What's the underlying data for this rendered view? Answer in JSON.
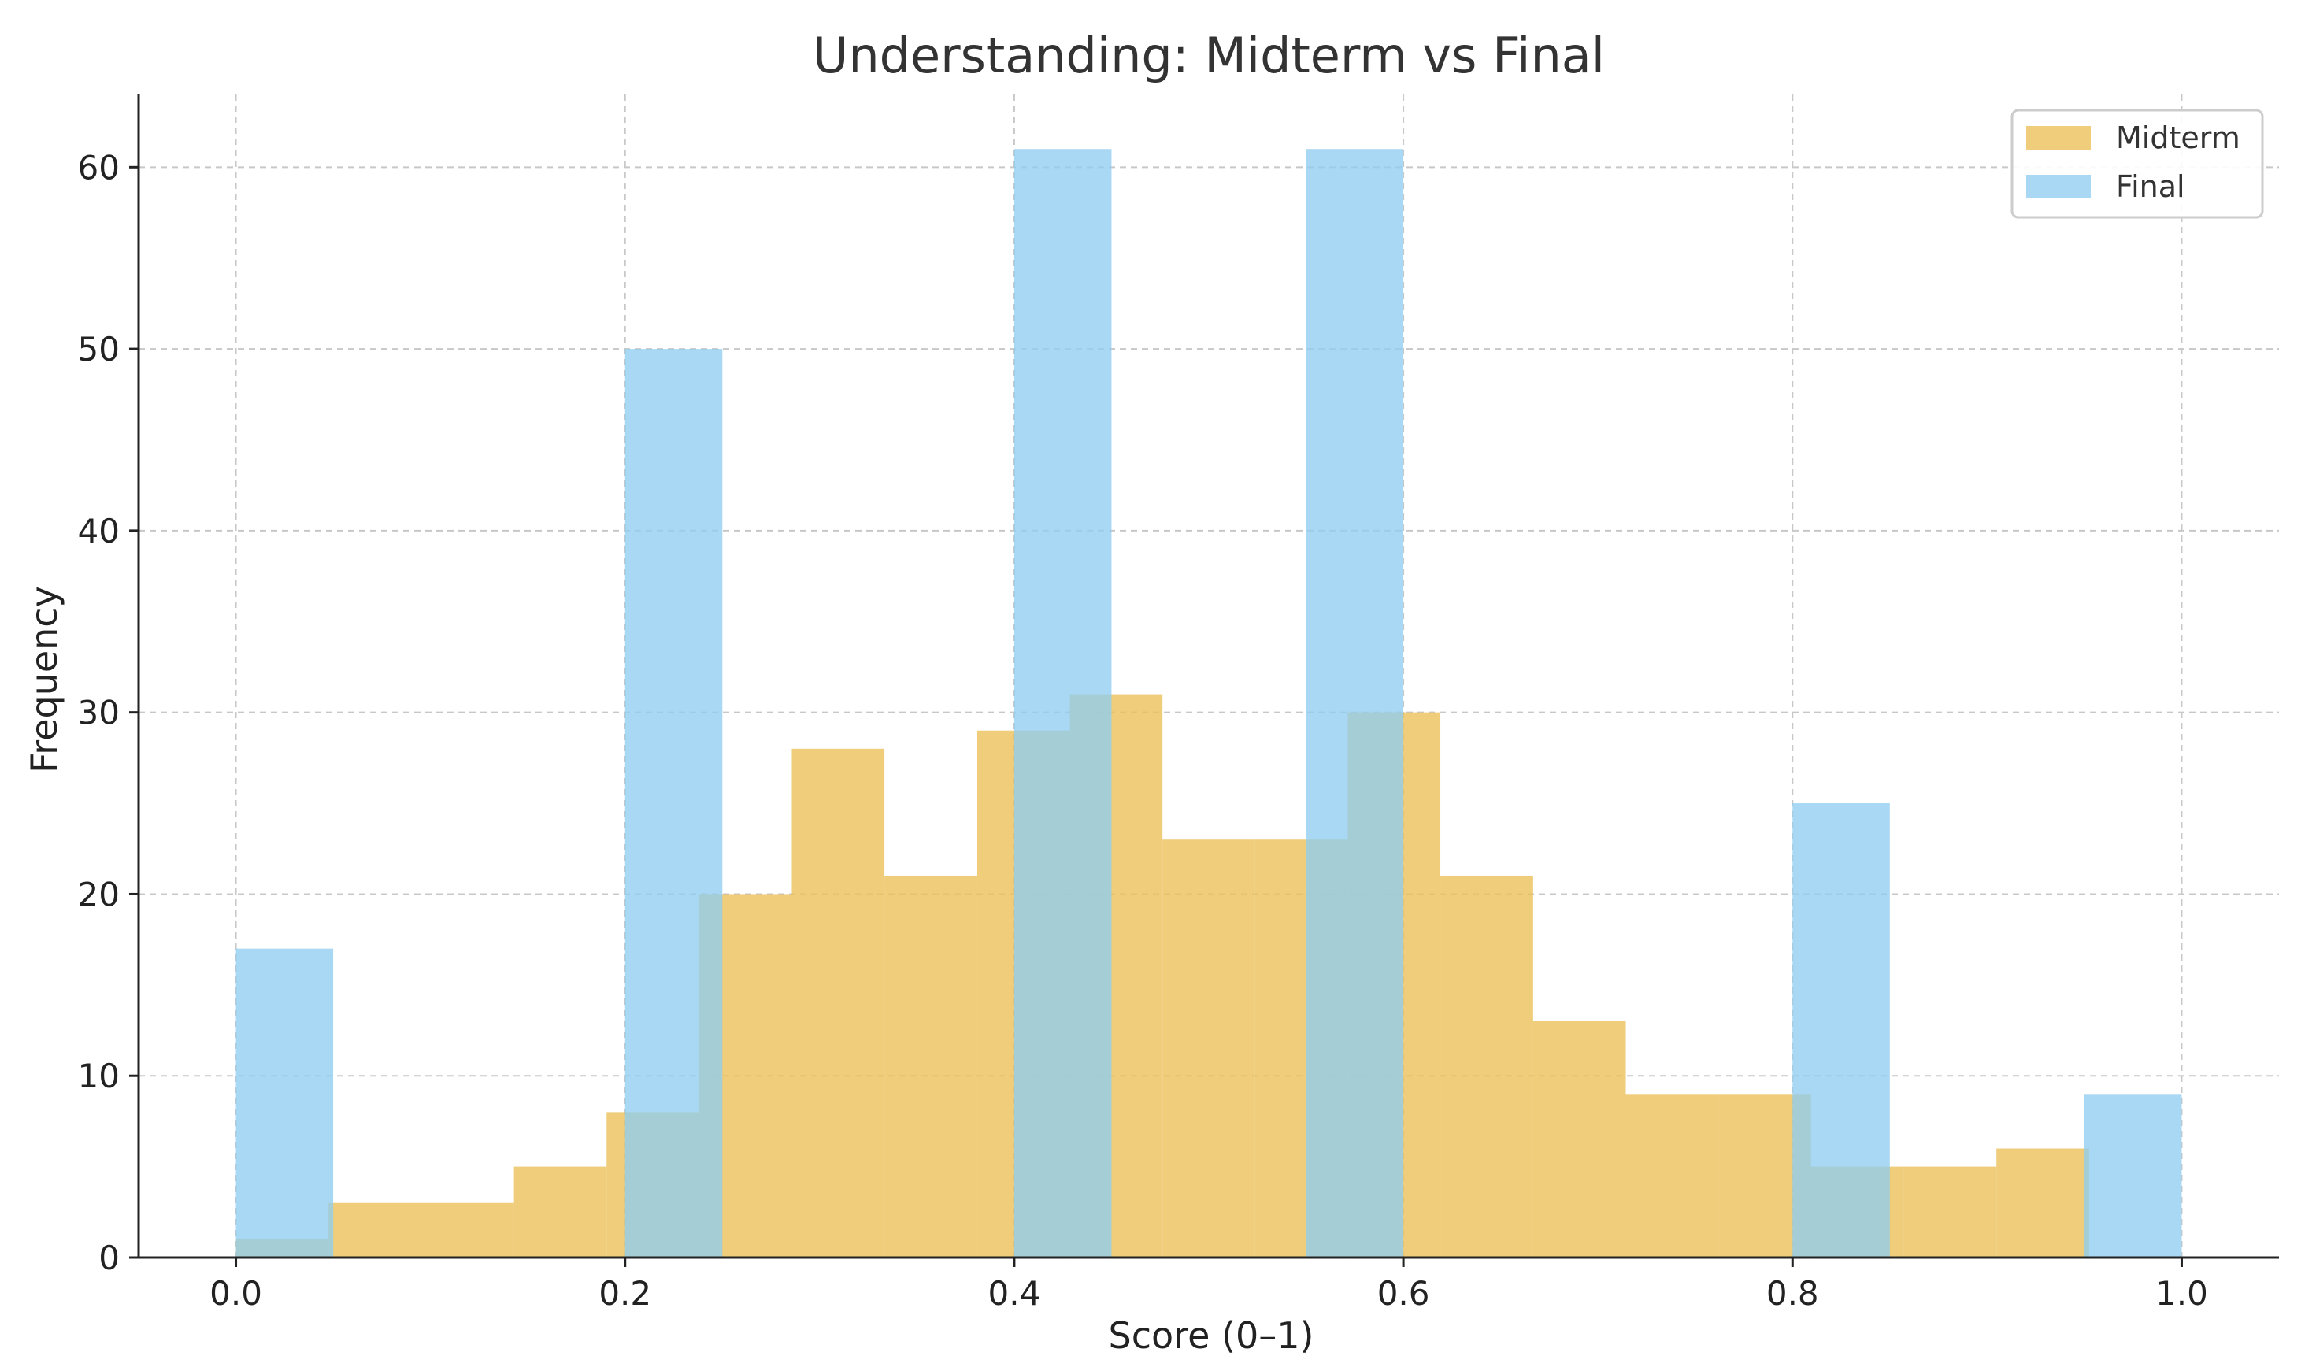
{
  "chart_data": {
    "type": "bar",
    "title": "Understanding: Midterm vs Final",
    "xlabel": "Score (0–1)",
    "ylabel": "Frequency",
    "xlim": [
      -0.05,
      1.05
    ],
    "ylim": [
      0,
      64
    ],
    "x_ticks": [
      "0.0",
      "0.2",
      "0.4",
      "0.6",
      "0.8",
      "1.0"
    ],
    "y_ticks": [
      "0",
      "10",
      "20",
      "30",
      "40",
      "50",
      "60"
    ],
    "grid": true,
    "legend_position": "top-right",
    "series": [
      {
        "name": "Midterm",
        "color": "#ebc05a",
        "opacity": 0.8,
        "bins": [
          [
            0.0,
            0.0476,
            1
          ],
          [
            0.0476,
            0.0952,
            3
          ],
          [
            0.0952,
            0.1429,
            3
          ],
          [
            0.1429,
            0.1905,
            5
          ],
          [
            0.1905,
            0.2381,
            8
          ],
          [
            0.2381,
            0.2857,
            20
          ],
          [
            0.2857,
            0.3333,
            28
          ],
          [
            0.3333,
            0.381,
            21
          ],
          [
            0.381,
            0.4286,
            29
          ],
          [
            0.4286,
            0.4762,
            31
          ],
          [
            0.4762,
            0.5238,
            23
          ],
          [
            0.5238,
            0.5714,
            23
          ],
          [
            0.5714,
            0.619,
            30
          ],
          [
            0.619,
            0.6667,
            21
          ],
          [
            0.6667,
            0.7143,
            13
          ],
          [
            0.7143,
            0.7619,
            9
          ],
          [
            0.7619,
            0.8095,
            9
          ],
          [
            0.8095,
            0.8571,
            5
          ],
          [
            0.8571,
            0.9048,
            5
          ],
          [
            0.9048,
            0.9524,
            6
          ],
          [
            0.9524,
            1.0,
            0
          ]
        ]
      },
      {
        "name": "Final",
        "color": "#90cdf0",
        "opacity": 0.78,
        "bins": [
          [
            0.0,
            0.05,
            17
          ],
          [
            0.05,
            0.1,
            0
          ],
          [
            0.1,
            0.15,
            0
          ],
          [
            0.15,
            0.2,
            0
          ],
          [
            0.2,
            0.25,
            50
          ],
          [
            0.25,
            0.3,
            0
          ],
          [
            0.3,
            0.35,
            0
          ],
          [
            0.35,
            0.4,
            0
          ],
          [
            0.4,
            0.45,
            61
          ],
          [
            0.45,
            0.5,
            0
          ],
          [
            0.5,
            0.55,
            0
          ],
          [
            0.55,
            0.6,
            61
          ],
          [
            0.6,
            0.65,
            0
          ],
          [
            0.65,
            0.7,
            0
          ],
          [
            0.7,
            0.75,
            0
          ],
          [
            0.75,
            0.8,
            0
          ],
          [
            0.8,
            0.85,
            25
          ],
          [
            0.85,
            0.9,
            0
          ],
          [
            0.9,
            0.95,
            0
          ],
          [
            0.95,
            1.0,
            9
          ]
        ]
      }
    ]
  }
}
